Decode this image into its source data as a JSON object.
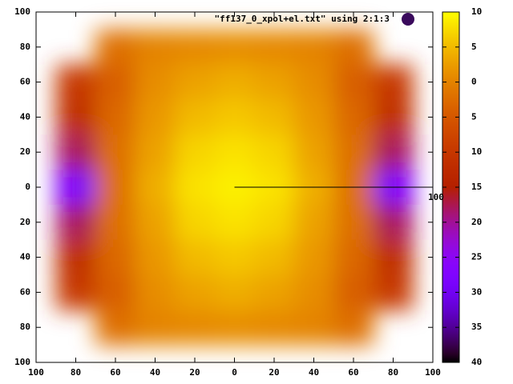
{
  "chart_data": {
    "type": "heatmap",
    "x": [
      -80,
      -60,
      -40,
      -20,
      0,
      20,
      40,
      60,
      80
    ],
    "y": [
      80,
      60,
      40,
      20,
      0,
      -20,
      -40,
      -60,
      -80
    ],
    "series": [
      {
        "name": "\"ff137_0_xpol+el.txt\" using 2:1:3",
        "marker_color": "#3a0a5c",
        "z": [
          [
            null,
            -2,
            0,
            0.5,
            1,
            0.5,
            0,
            -2,
            null
          ],
          [
            -10,
            -4,
            1,
            3,
            4,
            3,
            1,
            -4,
            -10
          ],
          [
            -12,
            -3,
            2,
            5,
            6,
            5,
            2,
            -3,
            -12
          ],
          [
            -18,
            -2,
            3,
            7,
            8,
            7,
            3,
            -2,
            -18
          ],
          [
            -28,
            -2,
            4,
            8,
            9,
            8,
            4,
            -2,
            -28
          ],
          [
            -18,
            -2,
            3,
            7,
            8,
            7,
            3,
            -2,
            -18
          ],
          [
            -12,
            -3,
            2,
            5,
            6,
            5,
            2,
            -3,
            -12
          ],
          [
            -10,
            -4,
            1,
            3,
            4,
            3,
            1,
            -4,
            -10
          ],
          [
            null,
            -2,
            0,
            0.5,
            1,
            0.5,
            0,
            -2,
            null
          ]
        ]
      }
    ],
    "xlim": [
      -100,
      100
    ],
    "xticks": [
      {
        "value": -100,
        "label": "100"
      },
      {
        "value": -80,
        "label": "80"
      },
      {
        "value": -60,
        "label": "60"
      },
      {
        "value": -40,
        "label": "40"
      },
      {
        "value": -20,
        "label": "20"
      },
      0,
      20,
      40,
      60,
      80,
      100
    ],
    "ylim": [
      -100,
      100
    ],
    "yticks": [
      {
        "value": -100,
        "label": "100"
      },
      {
        "value": -80,
        "label": "80"
      },
      {
        "value": -60,
        "label": "60"
      },
      {
        "value": -40,
        "label": "40"
      },
      {
        "value": -20,
        "label": "20"
      },
      0,
      20,
      40,
      60,
      80,
      100
    ],
    "cblim": [
      -40,
      10
    ],
    "cbticks": [
      10,
      5,
      0,
      {
        "value": -5,
        "label": "5"
      },
      {
        "value": -10,
        "label": "10"
      },
      {
        "value": -15,
        "label": "15"
      },
      {
        "value": -20,
        "label": "20"
      },
      {
        "value": -25,
        "label": "25"
      },
      {
        "value": -30,
        "label": "30"
      },
      {
        "value": -35,
        "label": "35"
      },
      {
        "value": -40,
        "label": "40"
      }
    ],
    "rlim": [
      0,
      100
    ],
    "rticks": [
      100
    ]
  }
}
